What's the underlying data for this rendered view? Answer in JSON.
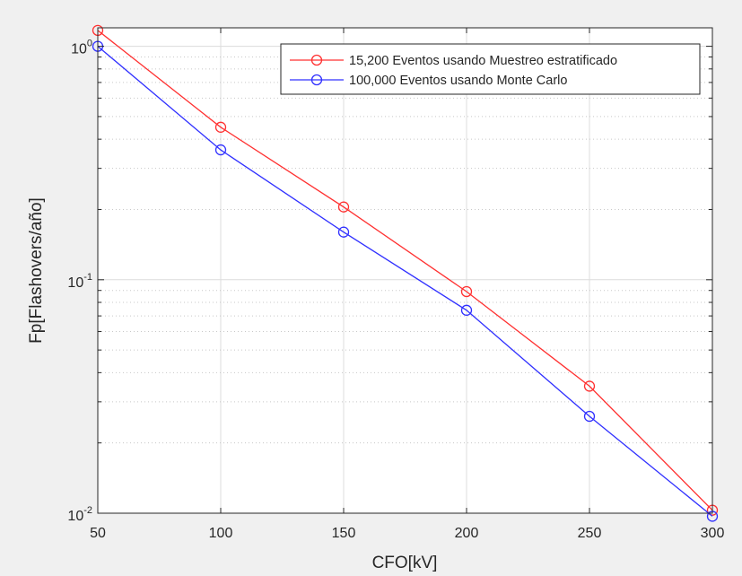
{
  "chart_data": {
    "type": "line",
    "title": "",
    "xlabel": "CFO[kV]",
    "ylabel": "Fp[Flashovers/año]",
    "x": [
      50,
      100,
      150,
      200,
      250,
      300
    ],
    "xlim": [
      50,
      300
    ],
    "ylim": [
      0.01,
      1.2
    ],
    "y_scale": "log",
    "grid": true,
    "minor_grid": true,
    "legend_position": "top-right",
    "x_ticks": [
      "50",
      "100",
      "150",
      "200",
      "250",
      "300"
    ],
    "y_ticks": [
      {
        "value": 1,
        "base": "10",
        "exp": "0"
      },
      {
        "value": 0.1,
        "base": "10",
        "exp": "-1"
      },
      {
        "value": 0.01,
        "base": "10",
        "exp": "-2"
      }
    ],
    "series": [
      {
        "name": "15,200 Eventos usando Muestreo estratificado",
        "color": "#ff3030",
        "marker": "circle",
        "values": [
          1.17,
          0.45,
          0.205,
          0.089,
          0.035,
          0.0103
        ]
      },
      {
        "name": "100,000 Eventos usando Monte Carlo",
        "color": "#3030ff",
        "marker": "circle",
        "values": [
          1.0,
          0.36,
          0.16,
          0.074,
          0.026,
          0.0097
        ]
      }
    ]
  }
}
